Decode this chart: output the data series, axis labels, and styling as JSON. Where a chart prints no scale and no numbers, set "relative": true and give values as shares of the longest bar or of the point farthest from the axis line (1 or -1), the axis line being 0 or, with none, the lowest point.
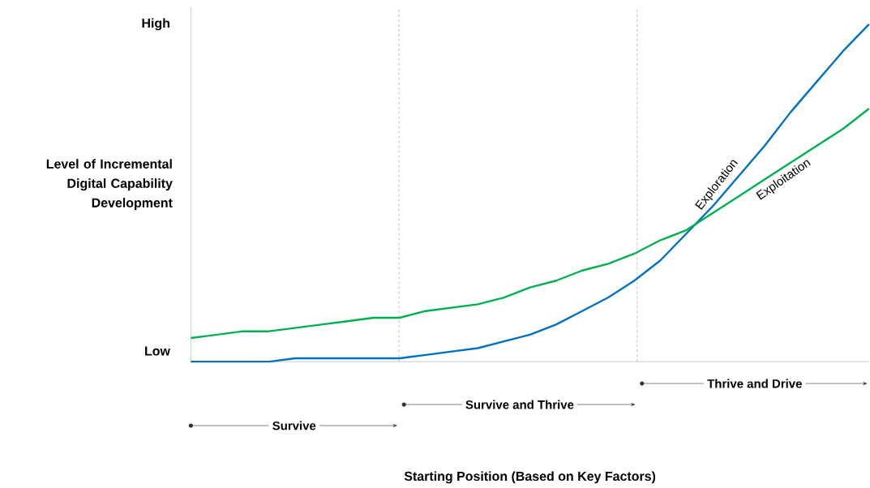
{
  "chart_data": {
    "type": "line",
    "relative": true,
    "ylabel": "Level of Incremental Digital Capability Development",
    "categories": [
      null,
      null,
      null,
      null,
      null,
      null,
      null,
      null,
      null,
      null,
      null,
      null,
      null,
      null,
      null,
      null,
      null,
      null,
      null,
      null,
      null,
      null,
      null,
      null,
      null,
      null,
      null
    ],
    "legend": false,
    "marker": "none",
    "line_style": "solid",
    "series": [
      {
        "name": "Exploration",
        "color": "#0070c0",
        "values": [
          0,
          0,
          0,
          0,
          0.01,
          0.01,
          0.01,
          0.01,
          0.01,
          0.02,
          0.03,
          0.04,
          0.06,
          0.08,
          0.11,
          0.15,
          0.19,
          0.24,
          0.3,
          0.38,
          0.46,
          0.55,
          0.64,
          0.74,
          0.83,
          0.92,
          1.0
        ]
      },
      {
        "name": "Exploitation",
        "color": "#00b050",
        "values": [
          0.07,
          0.08,
          0.09,
          0.09,
          0.1,
          0.11,
          0.12,
          0.13,
          0.13,
          0.15,
          0.16,
          0.17,
          0.19,
          0.22,
          0.24,
          0.27,
          0.29,
          0.32,
          0.36,
          0.39,
          0.44,
          0.49,
          0.54,
          0.59,
          0.64,
          0.69,
          0.75
        ]
      }
    ],
    "annotations": [
      "High",
      "Low",
      "Survive",
      "Survive and Thrive",
      "Thrive and Drive",
      "Starting Position (Based on Key Factors)"
    ]
  }
}
